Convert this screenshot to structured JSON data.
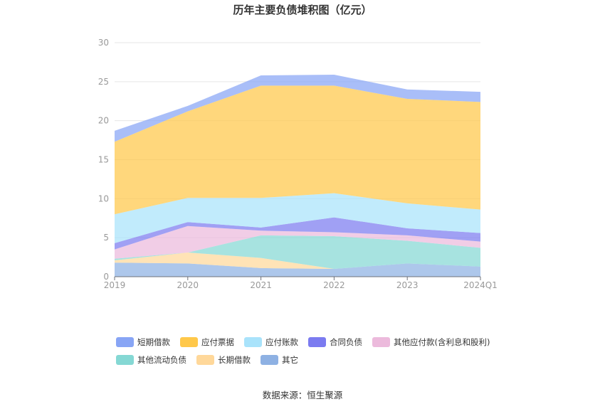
{
  "chart_data": {
    "type": "area",
    "stacked": true,
    "title": "历年主要负债堆积图（亿元）",
    "categories": [
      "2019",
      "2020",
      "2021",
      "2022",
      "2023",
      "2024Q1"
    ],
    "ylim": [
      0,
      30
    ],
    "yticks": [
      0,
      5,
      10,
      15,
      20,
      25,
      30
    ],
    "grid": true,
    "legend_position": "bottom",
    "series": [
      {
        "name": "其它",
        "color": "#8eb1e3",
        "values": [
          1.8,
          1.7,
          1.1,
          1.0,
          1.7,
          1.3
        ]
      },
      {
        "name": "长期借款",
        "color": "#ffd89a",
        "values": [
          0.3,
          1.4,
          1.3,
          0.0,
          0.0,
          0.0
        ]
      },
      {
        "name": "其他流动负债",
        "color": "#85d8d4",
        "values": [
          0.2,
          0.0,
          2.9,
          4.2,
          2.9,
          2.4
        ]
      },
      {
        "name": "其他应付款(含利息和股利)",
        "color": "#ecbadc",
        "values": [
          1.2,
          3.4,
          0.6,
          0.5,
          0.7,
          0.8
        ]
      },
      {
        "name": "合同负债",
        "color": "#7b7bf0",
        "values": [
          0.8,
          0.5,
          0.4,
          1.9,
          0.9,
          1.1
        ]
      },
      {
        "name": "应付账款",
        "color": "#a9e3fb",
        "values": [
          3.7,
          3.1,
          3.8,
          3.1,
          3.2,
          3.0
        ]
      },
      {
        "name": "应付票据",
        "color": "#ffc84a",
        "values": [
          9.3,
          11.1,
          14.4,
          13.8,
          13.4,
          13.8
        ]
      },
      {
        "name": "短期借款",
        "color": "#88a5f5",
        "values": [
          1.4,
          0.7,
          1.3,
          1.4,
          1.2,
          1.3
        ]
      }
    ]
  },
  "legend": {
    "row1": [
      {
        "name": "短期借款",
        "color": "#88a5f5"
      },
      {
        "name": "应付票据",
        "color": "#ffc84a"
      },
      {
        "name": "应付账款",
        "color": "#a9e3fb"
      },
      {
        "name": "合同负债",
        "color": "#7b7bf0"
      },
      {
        "name": "其他应付款(含利息和股利)",
        "color": "#ecbadc"
      }
    ],
    "row2": [
      {
        "name": "其他流动负债",
        "color": "#85d8d4"
      },
      {
        "name": "长期借款",
        "color": "#ffd89a"
      },
      {
        "name": "其它",
        "color": "#8eb1e3"
      }
    ]
  },
  "source_text": "数据来源：恒生聚源"
}
